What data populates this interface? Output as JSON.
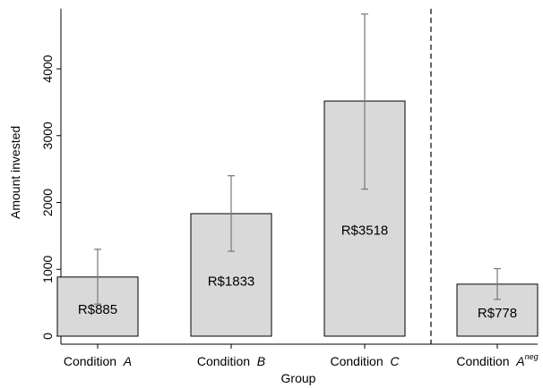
{
  "chart_data": {
    "type": "bar",
    "xlabel": "Group",
    "ylabel": "Amount invested",
    "ylim": [
      0,
      4900
    ],
    "yticks": [
      0,
      1000,
      2000,
      3000,
      4000
    ],
    "categories": [
      {
        "prefix": "Condition",
        "letter": "A",
        "sup": ""
      },
      {
        "prefix": "Condition",
        "letter": "B",
        "sup": ""
      },
      {
        "prefix": "Condition",
        "letter": "C",
        "sup": ""
      },
      {
        "prefix": "Condition",
        "letter": "A",
        "sup": "neg"
      }
    ],
    "values": [
      885,
      1833,
      3518,
      778
    ],
    "data_labels": [
      "R$885",
      "R$1833",
      "R$3518",
      "R$778"
    ],
    "error_low": [
      480,
      1270,
      2200,
      550
    ],
    "error_high": [
      1300,
      2400,
      4820,
      1010
    ],
    "separator_after_category": 3,
    "grid": false,
    "bar_color": "#d9d9d9",
    "error_color": "#777777"
  }
}
